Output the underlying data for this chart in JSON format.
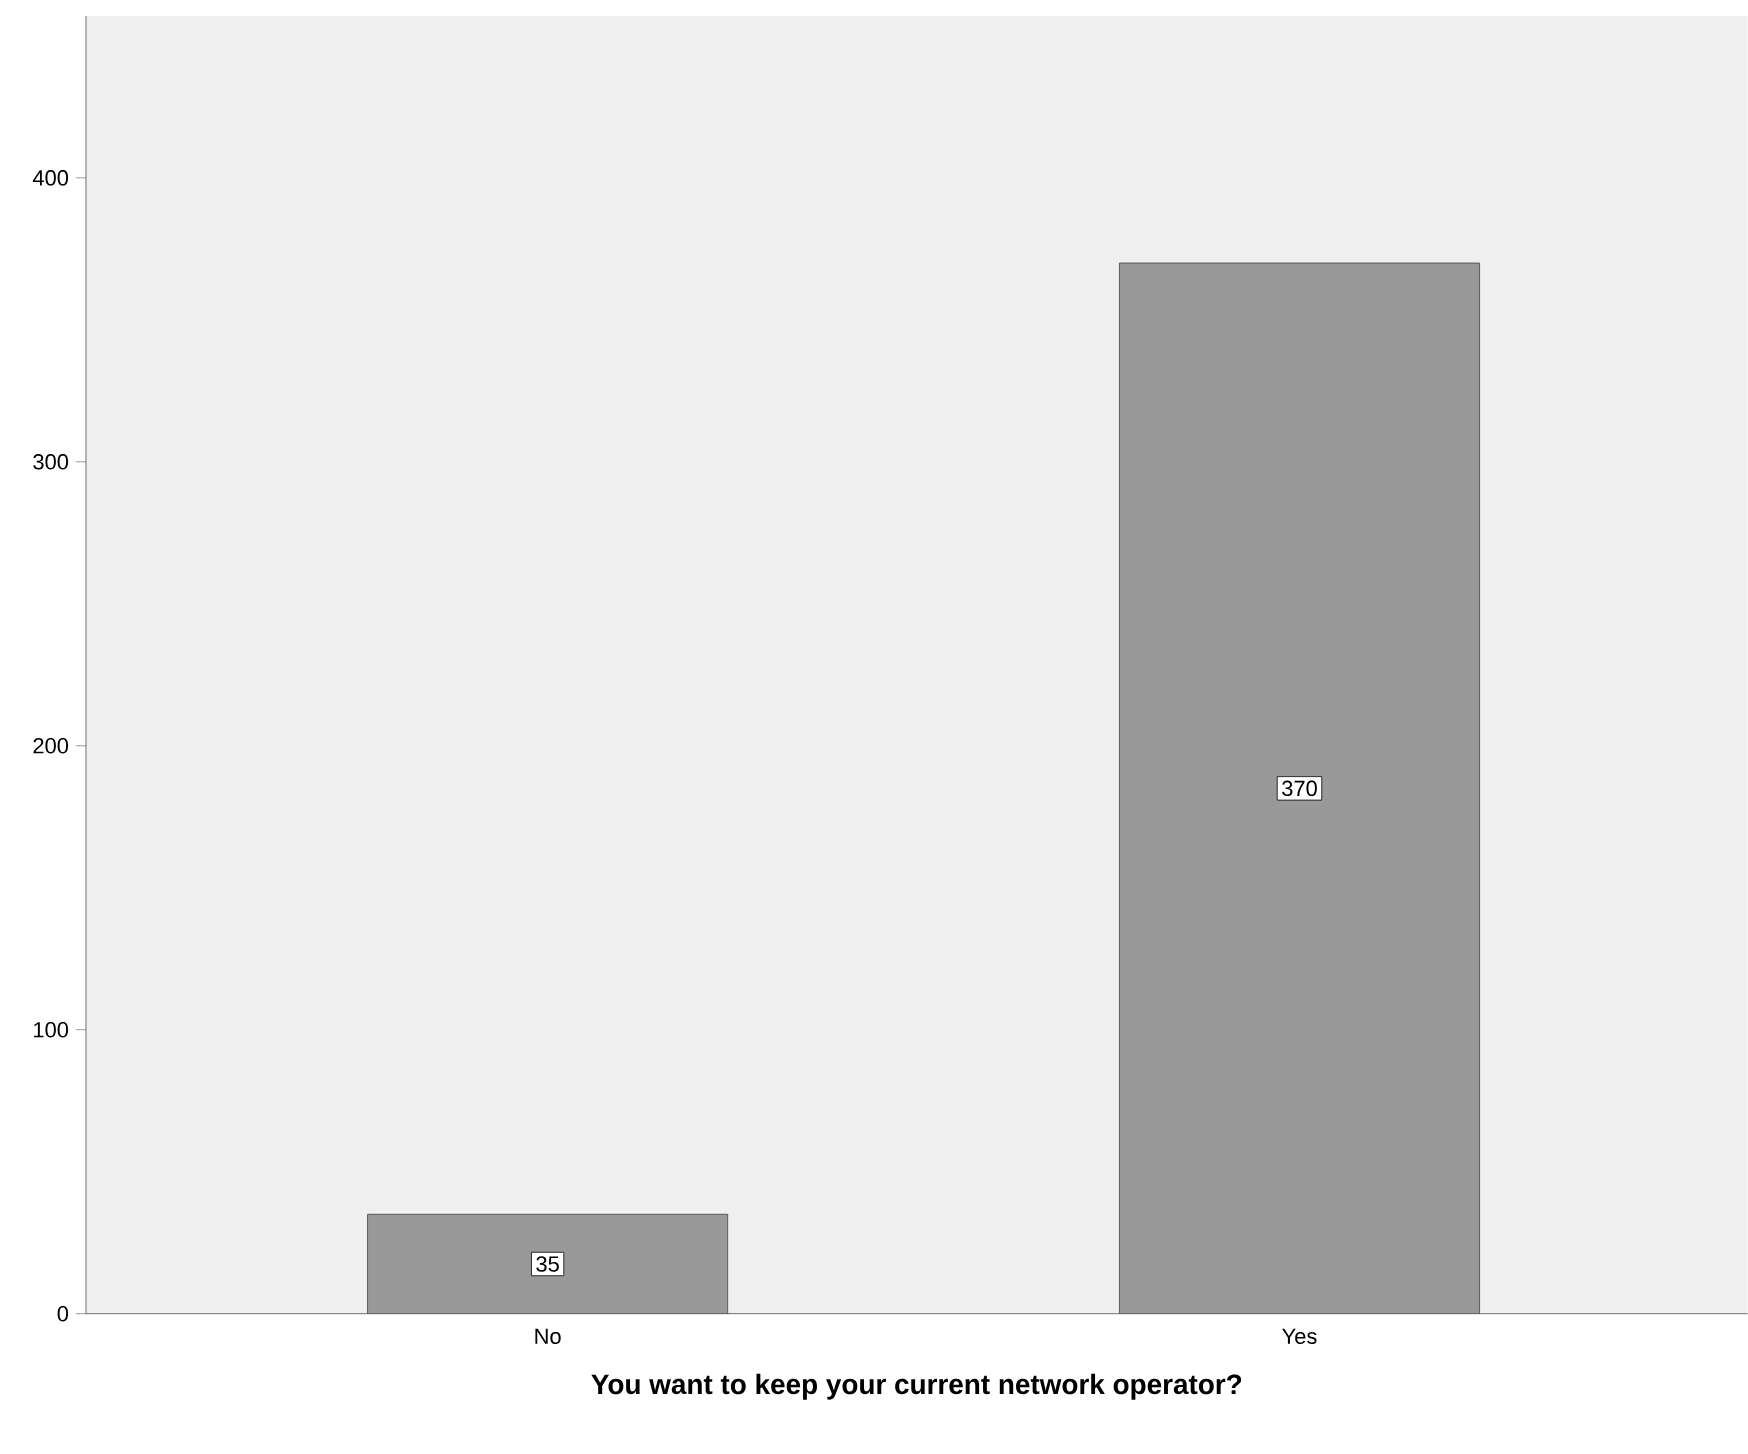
{
  "chart_data": {
    "type": "bar",
    "xlabel": "You want to keep your current network operator?",
    "categories": [
      "No",
      "Yes"
    ],
    "values": [
      35,
      370
    ],
    "color": "#999999",
    "ylim": [
      0,
      457
    ],
    "yticks": [
      0,
      100,
      200,
      300,
      400
    ],
    "data_labels": true
  }
}
